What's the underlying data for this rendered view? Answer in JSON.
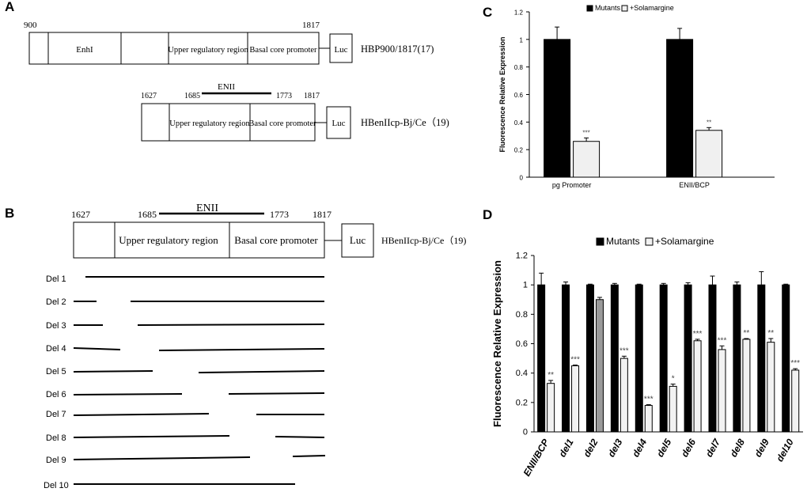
{
  "panels": {
    "a": "A",
    "b": "B",
    "c": "C",
    "d": "D"
  },
  "panelA": {
    "c1": {
      "start": "900",
      "end": "1817",
      "enh": "EnhI",
      "upper": "Upper regulatory region",
      "basal": "Basal core promoter",
      "luc": "Luc",
      "name": "HBP900/1817(17)"
    },
    "c2": {
      "start": "1627",
      "enii": "ENII",
      "p1685": "1685",
      "p1773": "1773",
      "end": "1817",
      "upper": "Upper regulatory region",
      "basal": "Basal core promoter",
      "luc": "Luc",
      "name": "HBenIIcp-Bj/Ce（19)"
    }
  },
  "panelB": {
    "start": "1627",
    "p1685": "1685",
    "enii": "ENII",
    "p1773": "1773",
    "end": "1817",
    "upper": "Upper regulatory region",
    "basal": "Basal core promoter",
    "luc": "Luc",
    "name": "HBenIIcp-Bj/Ce（19)",
    "deletions": [
      "Del 1",
      "Del 2",
      "Del 3",
      "Del 4",
      "Del 5",
      "Del 6",
      "Del 7",
      "Del 8",
      "Del 9",
      "Del 10"
    ]
  },
  "chart_data": [
    {
      "type": "bar",
      "panel": "C",
      "categories": [
        "pg Promoter",
        "ENII/BCP"
      ],
      "series": [
        {
          "name": "Mutants",
          "color": "#000000",
          "values": [
            1.0,
            1.0
          ],
          "errors": [
            0.09,
            0.08
          ]
        },
        {
          "name": "+Solamargine",
          "color": "#f0f0f0",
          "values": [
            0.26,
            0.34
          ],
          "errors": [
            0.025,
            0.02
          ]
        }
      ],
      "significance": [
        "***",
        "**"
      ],
      "ylabel": "Fluorescence Relative Expression",
      "ylim": [
        0,
        1.2
      ],
      "yticks": [
        "0",
        "0.2",
        "0.4",
        "0.6",
        "0.8",
        "1",
        "1.2"
      ],
      "legend": "top"
    },
    {
      "type": "bar",
      "panel": "D",
      "categories": [
        "ENII/BCP",
        "del1",
        "del2",
        "del3",
        "del4",
        "del5",
        "del6",
        "del7",
        "del8",
        "del9",
        "del10"
      ],
      "series": [
        {
          "name": "Mutants",
          "color": "#000000",
          "values": [
            1.0,
            1.0,
            1.0,
            1.0,
            1.0,
            1.0,
            1.0,
            1.0,
            1.0,
            1.0,
            1.0
          ],
          "errors": [
            0.08,
            0.02,
            0.005,
            0.01,
            0.005,
            0.01,
            0.015,
            0.06,
            0.02,
            0.09,
            0.005
          ]
        },
        {
          "name": "+Solamargine",
          "color": "#f2f2f2",
          "values": [
            0.33,
            0.45,
            0.9,
            0.5,
            0.18,
            0.31,
            0.62,
            0.56,
            0.63,
            0.61,
            0.42
          ],
          "errors": [
            0.02,
            0.005,
            0.015,
            0.015,
            0.005,
            0.015,
            0.01,
            0.025,
            0.005,
            0.025,
            0.01
          ]
        }
      ],
      "highlight": {
        "index": 2,
        "color": "#9a9a9a"
      },
      "significance": [
        "**",
        "***",
        "",
        "***",
        "***",
        "*",
        "***",
        "***",
        "**",
        "**",
        "***"
      ],
      "ylabel": "Fluorescence Relative Expression",
      "ylim": [
        0,
        1.2
      ],
      "yticks": [
        "0",
        "0.2",
        "0.4",
        "0.6",
        "0.8",
        "1",
        "1.2"
      ],
      "legend": "top"
    }
  ]
}
